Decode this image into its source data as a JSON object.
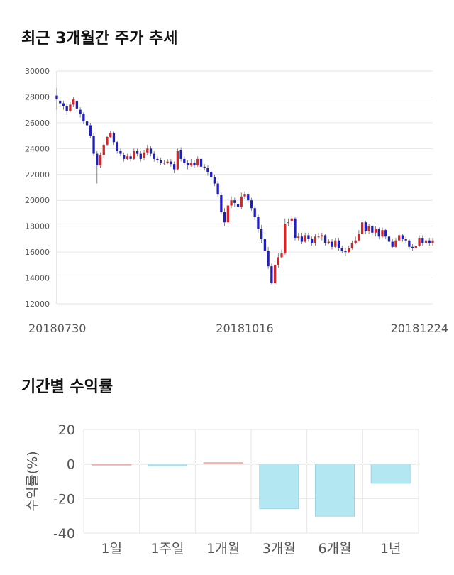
{
  "sections": {
    "price_title": "최근 3개월간 주가 추세",
    "returns_title": "기간별 수익률"
  },
  "chart_data": [
    {
      "type": "candlestick",
      "title": "최근 3개월간 주가 추세",
      "ylim": [
        12000,
        30000
      ],
      "yticks": [
        12000,
        14000,
        16000,
        18000,
        20000,
        22000,
        24000,
        26000,
        28000,
        30000
      ],
      "ytick_labels": [
        "12000",
        "14000",
        "16000",
        "18000",
        "20000",
        "22000",
        "24000",
        "26000",
        "28000",
        "30000"
      ],
      "xtick_labels": [
        "20180730",
        "20181016",
        "20181224"
      ],
      "xtick_index": [
        0,
        56,
        112
      ],
      "up_color": "#d62728",
      "down_color": "#1f1fbf",
      "close": [
        27800,
        27500,
        27300,
        26900,
        27400,
        27800,
        27100,
        26700,
        26100,
        25800,
        25000,
        23600,
        22700,
        23500,
        24300,
        24900,
        25200,
        24500,
        23800,
        23600,
        23200,
        23400,
        23200,
        23800,
        23600,
        23200,
        23700,
        24000,
        23600,
        23200,
        23100,
        22900,
        22900,
        23000,
        22800,
        22400,
        23800,
        23200,
        22900,
        22700,
        22900,
        22700,
        23200,
        22600,
        22500,
        22200,
        21800,
        21300,
        20500,
        19100,
        18300,
        19600,
        20000,
        19800,
        19500,
        20300,
        20500,
        20000,
        19400,
        18700,
        17800,
        17000,
        16100,
        14900,
        13600,
        15000,
        15600,
        15900,
        18200,
        18300,
        18600,
        17100,
        17200,
        16800,
        17300,
        17000,
        16700,
        17200,
        17200,
        17300,
        16700,
        16800,
        16400,
        16900,
        16300,
        16100,
        16000,
        16300,
        16700,
        16900,
        17400,
        18300,
        17600,
        18000,
        17500,
        17800,
        17200,
        17700,
        17200,
        16800,
        16400,
        16900,
        17300,
        17000,
        16900,
        16400,
        16300,
        16500,
        17100,
        16700,
        16900,
        16700,
        16900
      ],
      "open": [
        28100,
        27700,
        27500,
        27300,
        26900,
        27400,
        27700,
        27000,
        26700,
        26100,
        25800,
        25000,
        23600,
        22700,
        23500,
        24300,
        24900,
        25200,
        24500,
        23800,
        23500,
        23200,
        23400,
        23200,
        23800,
        23600,
        23300,
        23700,
        24000,
        23600,
        23200,
        23100,
        22900,
        22900,
        23000,
        22800,
        22400,
        23900,
        23200,
        22900,
        22700,
        22900,
        22700,
        23200,
        22600,
        22500,
        22200,
        21800,
        21300,
        20400,
        19100,
        18300,
        19600,
        20000,
        19700,
        19500,
        20300,
        20500,
        20000,
        19400,
        18700,
        17800,
        17000,
        16100,
        14900,
        13600,
        15000,
        15600,
        15900,
        18300,
        18400,
        18600,
        17100,
        17200,
        16800,
        17300,
        17000,
        16700,
        17200,
        17200,
        17300,
        16700,
        16800,
        16400,
        16900,
        16300,
        16100,
        16000,
        16300,
        16700,
        16900,
        17400,
        18300,
        17600,
        18000,
        17500,
        17800,
        17200,
        17700,
        17200,
        16800,
        16400,
        16900,
        17300,
        17000,
        16900,
        16400,
        16300,
        16500,
        17100,
        16700,
        16900,
        16700
      ],
      "high": [
        28700,
        28000,
        27700,
        27500,
        27600,
        28000,
        27900,
        27200,
        26800,
        26300,
        26000,
        25200,
        23800,
        23700,
        24500,
        25000,
        25400,
        25300,
        24600,
        24000,
        23700,
        23600,
        23600,
        24000,
        24000,
        23800,
        23900,
        24300,
        24200,
        23800,
        23400,
        23300,
        23100,
        23200,
        23200,
        23000,
        24000,
        24100,
        23400,
        23100,
        23200,
        23100,
        23400,
        23400,
        22800,
        22700,
        22400,
        22000,
        21500,
        20600,
        19400,
        19900,
        20300,
        20200,
        20000,
        20600,
        20700,
        20700,
        20200,
        19600,
        18900,
        18100,
        17300,
        16400,
        15100,
        15200,
        15900,
        16200,
        18600,
        18600,
        18800,
        18700,
        17500,
        17500,
        17500,
        17500,
        17200,
        17400,
        17500,
        17500,
        17400,
        17000,
        17000,
        17100,
        17100,
        16500,
        16300,
        16500,
        16900,
        17200,
        17700,
        18500,
        18400,
        18200,
        18100,
        18000,
        17900,
        17900,
        17800,
        17400,
        17000,
        17100,
        17500,
        17400,
        17200,
        17000,
        16600,
        16700,
        17300,
        17300,
        17200,
        17100,
        17100
      ],
      "low": [
        27000,
        27200,
        27000,
        26600,
        26800,
        27200,
        26900,
        26400,
        25900,
        25500,
        24800,
        23400,
        21300,
        22500,
        23300,
        24200,
        24800,
        24300,
        23600,
        23400,
        23000,
        23100,
        23000,
        23100,
        23400,
        23000,
        23100,
        23500,
        23400,
        23000,
        22900,
        22700,
        22700,
        22800,
        22600,
        22100,
        22300,
        23000,
        22700,
        22400,
        22600,
        22500,
        22600,
        22400,
        22300,
        21900,
        21600,
        21100,
        20300,
        18900,
        18000,
        18200,
        19400,
        19500,
        19300,
        19300,
        20100,
        19800,
        19200,
        18500,
        17500,
        16700,
        15800,
        14700,
        13500,
        13500,
        14800,
        15500,
        15800,
        18000,
        18100,
        16900,
        16900,
        16600,
        16700,
        16800,
        16500,
        16500,
        17000,
        16900,
        16500,
        16600,
        16200,
        16300,
        16100,
        15900,
        15700,
        15900,
        16200,
        16600,
        16800,
        17200,
        17400,
        17400,
        17300,
        17200,
        17000,
        17100,
        17000,
        16600,
        16300,
        16300,
        16800,
        16800,
        16700,
        16200,
        16100,
        16200,
        16400,
        16500,
        16500,
        16500,
        16500
      ]
    },
    {
      "type": "bar",
      "title": "기간별 수익률",
      "ylabel": "수익률(%)",
      "categories": [
        "1일",
        "1주일",
        "1개월",
        "3개월",
        "6개월",
        "1년"
      ],
      "values": [
        0,
        -1.0,
        0.8,
        -25.8,
        -30.2,
        -11.2
      ],
      "ylim": [
        -40,
        20
      ],
      "yticks": [
        20,
        0,
        -20,
        -40
      ],
      "ytick_labels": [
        "20",
        "0",
        "-20",
        "-40"
      ],
      "positive_color": "#f4b8b8",
      "negative_color": "#b3e8f2",
      "grid": true
    }
  ]
}
